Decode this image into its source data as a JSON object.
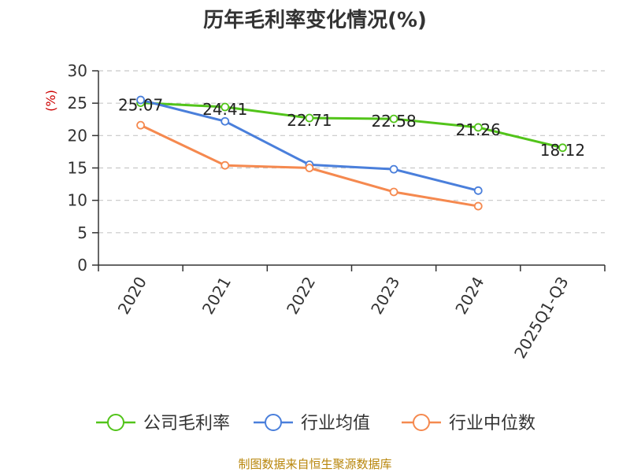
{
  "chart_data": {
    "type": "line",
    "title": "历年毛利率变化情况(%)",
    "ylabel": "(%)",
    "xlabel": "",
    "categories": [
      "2020",
      "2021",
      "2022",
      "2023",
      "2024",
      "2025Q1-Q3"
    ],
    "ylim": [
      0,
      30
    ],
    "yticks": [
      0,
      5,
      10,
      15,
      20,
      25,
      30
    ],
    "grid": true,
    "legend_position": "bottom",
    "series": [
      {
        "name": "公司毛利率",
        "color": "#52c41a",
        "values": [
          25.07,
          24.41,
          22.71,
          22.58,
          21.26,
          18.12
        ],
        "labels": [
          "25.07",
          "24.41",
          "22.71",
          "22.58",
          "21.26",
          "18.12"
        ]
      },
      {
        "name": "行业均值",
        "color": "#4a7fdb",
        "values": [
          25.5,
          22.2,
          15.5,
          14.8,
          11.5,
          null
        ]
      },
      {
        "name": "行业中位数",
        "color": "#f5894f",
        "values": [
          21.6,
          15.4,
          15.0,
          11.3,
          9.1,
          null
        ]
      }
    ]
  },
  "source": "制图数据来自恒生聚源数据库"
}
